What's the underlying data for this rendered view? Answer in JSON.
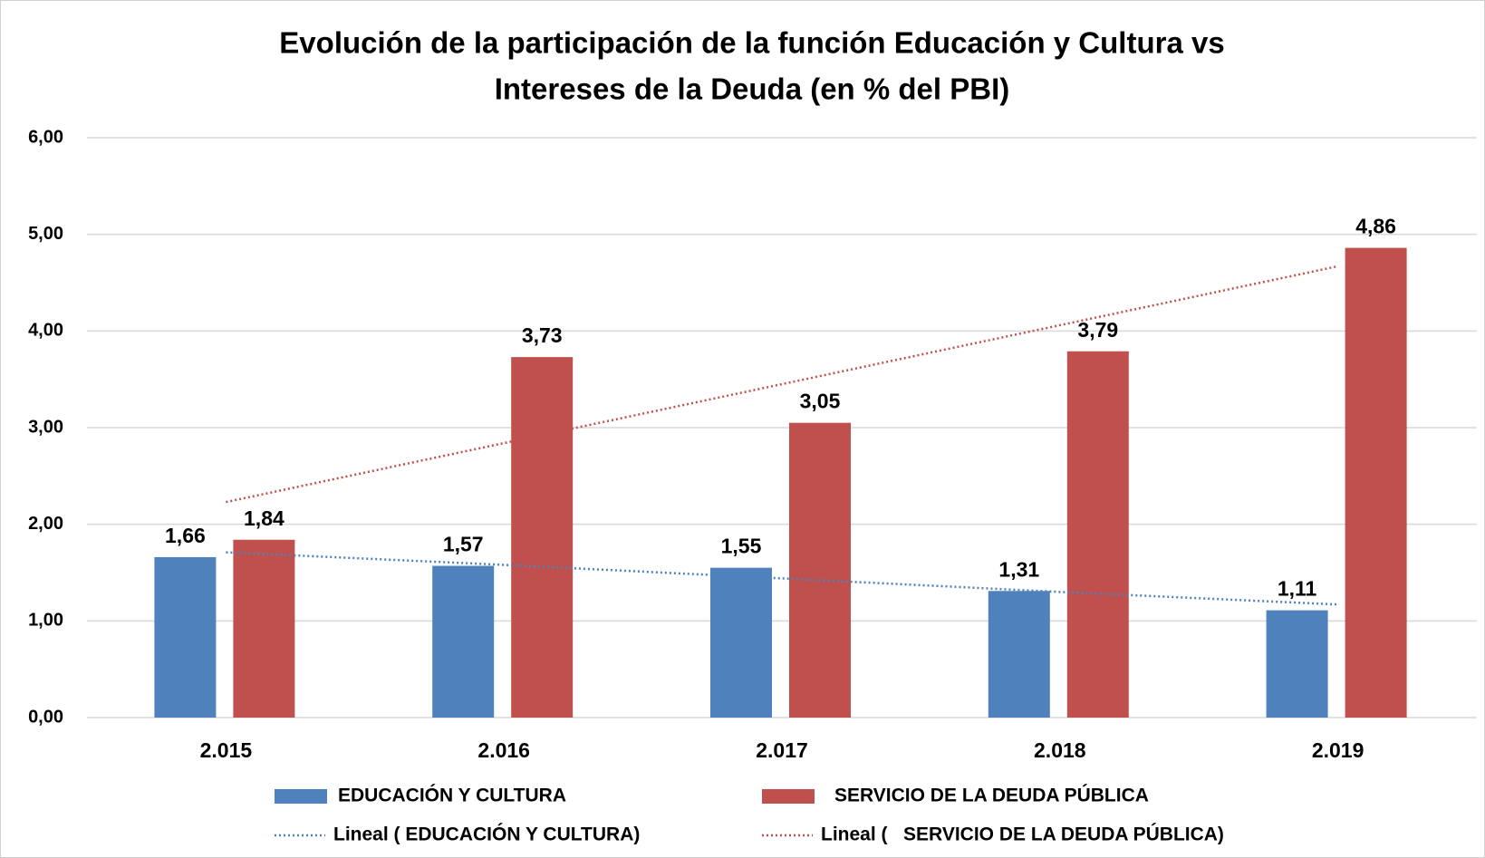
{
  "chart_data": {
    "type": "bar",
    "title": [
      "Evolución de la participación de la función Educación y Cultura vs",
      "Intereses de la Deuda (en % del PBI)"
    ],
    "categories": [
      "2.015",
      "2.016",
      "2.017",
      "2.018",
      "2.019"
    ],
    "series": [
      {
        "name": "EDUCACIÓN Y CULTURA",
        "color": "#4f81bd",
        "values": [
          1.66,
          1.57,
          1.55,
          1.31,
          1.11
        ],
        "value_labels": [
          "1,66",
          "1,57",
          "1,55",
          "1,31",
          "1,11"
        ]
      },
      {
        "name": "SERVICIO DE LA DEUDA PÚBLICA",
        "color": "#c0504d",
        "values": [
          1.84,
          3.73,
          3.05,
          3.79,
          4.86
        ],
        "value_labels": [
          "1,84",
          "3,73",
          "3,05",
          "3,79",
          "4,86"
        ]
      }
    ],
    "trendlines": [
      {
        "name": "Lineal ( EDUCACIÓN Y CULTURA)",
        "color": "#4f81bd",
        "values": [
          1.71,
          1.58,
          1.44,
          1.3,
          1.17
        ]
      },
      {
        "name": "Lineal (   SERVICIO DE LA DEUDA PÚBLICA)",
        "color": "#c0504d",
        "values": [
          2.23,
          2.84,
          3.45,
          4.06,
          4.67
        ]
      }
    ],
    "ylim": [
      0,
      6
    ],
    "yticks": [
      {
        "value": 0,
        "label": "0,00"
      },
      {
        "value": 1,
        "label": "1,00"
      },
      {
        "value": 2,
        "label": "2,00"
      },
      {
        "value": 3,
        "label": "3,00"
      },
      {
        "value": 4,
        "label": "4,00"
      },
      {
        "value": 5,
        "label": "5,00"
      },
      {
        "value": 6,
        "label": "6,00"
      }
    ],
    "grid": true
  }
}
